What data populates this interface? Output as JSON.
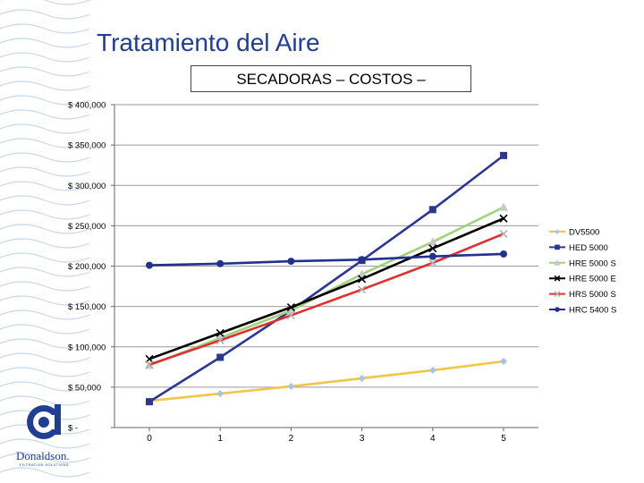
{
  "slide": {
    "title": "Tratamiento  del Aire",
    "subtitle": "SECADORAS – COSTOS –"
  },
  "colors": {
    "title": "#1f3e94",
    "dv5500": "#f0c54a",
    "hed5000": "#2e3790",
    "hre5000s": "#9fd27a",
    "hre5000e": "#000000",
    "hrs5000s": "#e03030",
    "hrc5400s": "#23318c"
  },
  "logo": {
    "brand": "Donaldson.",
    "tagline": "FILTRATION SOLUTIONS"
  },
  "chart_data": {
    "type": "line",
    "title": "",
    "xlabel": "",
    "ylabel": "",
    "x": [
      0,
      1,
      2,
      3,
      4,
      5
    ],
    "x_tick_labels": [
      "0",
      "1",
      "2",
      "3",
      "4",
      "5"
    ],
    "ylim": [
      0,
      400000
    ],
    "y_ticks": [
      0,
      50000,
      100000,
      150000,
      200000,
      250000,
      300000,
      350000,
      400000
    ],
    "y_tick_labels": [
      "$ -",
      "$ 50,000",
      "$ 100,000",
      "$ 150,000",
      "$ 200,000",
      "$ 250,000",
      "$ 300,000",
      "$ 350,000",
      "$ 400,000"
    ],
    "grid": "horizontal",
    "legend_position": "right",
    "series": [
      {
        "name": "DV5500",
        "values": [
          33000,
          42000,
          51000,
          61000,
          71000,
          82000
        ],
        "color": "#f0c54a",
        "marker": "diamond",
        "marker_color": "#a9c4e0"
      },
      {
        "name": "HED 5000",
        "values": [
          32000,
          87000,
          145000,
          207000,
          270000,
          337000
        ],
        "color": "#2e3790",
        "marker": "square",
        "marker_color": "#2e3790"
      },
      {
        "name": "HRE 5000 S",
        "values": [
          77000,
          111000,
          145000,
          190000,
          230000,
          273000
        ],
        "color": "#9fd27a",
        "marker": "triangle",
        "marker_color": "#c8c8c8"
      },
      {
        "name": "HRE 5000 E",
        "values": [
          85000,
          117000,
          149000,
          184000,
          222000,
          259000
        ],
        "color": "#000000",
        "marker": "x",
        "marker_color": "#000000"
      },
      {
        "name": "HRS 5000 S",
        "values": [
          78000,
          108000,
          139000,
          171000,
          204000,
          240000
        ],
        "color": "#e03030",
        "marker": "x",
        "marker_color": "#b0b0b0"
      },
      {
        "name": "HRC 5400 S",
        "values": [
          201000,
          203000,
          206000,
          208000,
          212000,
          215000
        ],
        "color": "#23318c",
        "marker": "circle",
        "marker_color": "#23318c"
      }
    ]
  }
}
